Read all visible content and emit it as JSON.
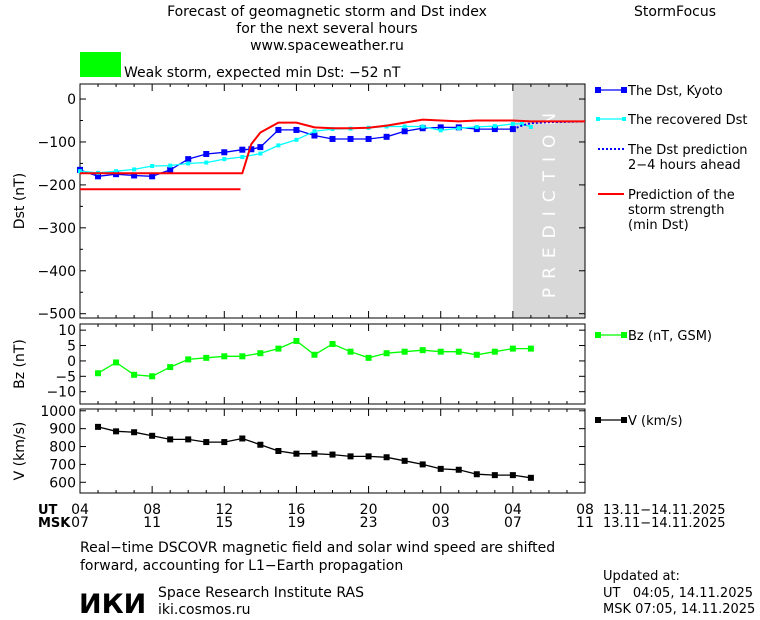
{
  "header": {
    "title_line1": "Forecast of geomagnetic storm and Dst index",
    "title_line2": "for the next several hours",
    "url": "www.spaceweather.ru",
    "brand": "StormFocus",
    "storm_label": "Weak storm, expected min Dst: −52 nT",
    "storm_color": "#00ff00"
  },
  "time_axis": {
    "ut_label": "UT",
    "msk_label": "MSK",
    "ut_ticks": [
      "04",
      "08",
      "12",
      "16",
      "20",
      "00",
      "04",
      "08"
    ],
    "msk_ticks": [
      "07",
      "11",
      "15",
      "19",
      "23",
      "03",
      "07",
      "11"
    ],
    "ut_range": "13.11−14.11.2025",
    "msk_range": "13.11−14.11.2025",
    "x_range_hours": [
      4,
      32
    ]
  },
  "prediction_band": {
    "text": "PREDICTION",
    "x_range_hours": [
      28,
      32
    ],
    "color": "#d8d8d8"
  },
  "chart_data": [
    {
      "type": "line",
      "ylabel": "Dst (nT)",
      "ylim": [
        -510,
        35
      ],
      "yticks": [
        "0",
        "−100",
        "−200",
        "−300",
        "−400",
        "−500"
      ],
      "ytick_values": [
        0,
        -100,
        -200,
        -300,
        -400,
        -500
      ],
      "series": [
        {
          "name": "The Dst, Kyoto",
          "color": "#0000ff",
          "marker": "square",
          "x": [
            4,
            5,
            6,
            7,
            8,
            9,
            10,
            11,
            12,
            13,
            13.5,
            14,
            15,
            16,
            17,
            18,
            19,
            20,
            21,
            22,
            23,
            24,
            25,
            26,
            27,
            28
          ],
          "y": [
            -165,
            -180,
            -175,
            -178,
            -180,
            -165,
            -140,
            -128,
            -124,
            -118,
            -117,
            -112,
            -72,
            -72,
            -85,
            -93,
            -93,
            -93,
            -88,
            -75,
            -68,
            -66,
            -66,
            -70,
            -70,
            -70
          ]
        },
        {
          "name": "The recovered Dst",
          "color": "#00ffff",
          "marker": "square-small",
          "x": [
            4,
            5,
            6,
            7,
            8,
            9,
            10,
            11,
            12,
            13,
            14,
            15,
            16,
            17,
            18,
            19,
            20,
            21,
            22,
            23,
            24,
            25,
            26,
            27,
            28,
            28.5,
            29
          ],
          "y": [
            -168,
            -172,
            -168,
            -164,
            -156,
            -155,
            -150,
            -148,
            -140,
            -135,
            -127,
            -108,
            -95,
            -75,
            -70,
            -69,
            -67,
            -64,
            -64,
            -64,
            -73,
            -68,
            -65,
            -63,
            -58,
            -58,
            -65
          ]
        },
        {
          "name": "The Dst prediction 2−4 hours ahead",
          "color": "#0000ff",
          "dashed": true,
          "x": [
            28,
            28.5,
            29,
            30,
            31,
            32
          ],
          "y": [
            -70,
            -62,
            -56,
            -54,
            -53,
            -52
          ]
        },
        {
          "name": "Prediction of the storm strength (min Dst)",
          "color": "#ff0000",
          "x": [
            4,
            5,
            6,
            7,
            8,
            9,
            10,
            11,
            12,
            13,
            13.5,
            14,
            15,
            16,
            17,
            18,
            19,
            20,
            21,
            22,
            23,
            24,
            25,
            26,
            27,
            28,
            29,
            30,
            31,
            32
          ],
          "y": [
            -173,
            -173,
            -173,
            -173,
            -173,
            -173,
            -173,
            -173,
            -173,
            -173,
            -105,
            -78,
            -55,
            -55,
            -66,
            -68,
            -68,
            -67,
            -62,
            -55,
            -48,
            -50,
            -52,
            -50,
            -50,
            -50,
            -52,
            -52,
            -52,
            -52
          ]
        },
        {
          "name": "",
          "color": "#ff0000",
          "x": [
            4,
            12.9
          ],
          "y": [
            -210,
            -210
          ]
        }
      ],
      "legend": [
        {
          "text": "The Dst, Kyoto",
          "style": "blue-square"
        },
        {
          "text": "The recovered Dst",
          "style": "cyan-square"
        },
        {
          "text": "The Dst prediction",
          "text2": "2−4 hours ahead",
          "style": "blue-dotted"
        },
        {
          "text": "Prediction of the",
          "text2": "storm strength",
          "text3": "(min Dst)",
          "style": "red-line"
        }
      ]
    },
    {
      "type": "line",
      "ylabel": "Bz (nT)",
      "ylim": [
        -14,
        12
      ],
      "yticks": [
        "10",
        "5",
        "0",
        "−5",
        "−10"
      ],
      "ytick_values": [
        10,
        5,
        0,
        -5,
        -10
      ],
      "series": [
        {
          "name": "Bz (nT, GSM)",
          "color": "#00ff00",
          "x": [
            5,
            6,
            7,
            8,
            9,
            10,
            11,
            12,
            13,
            14,
            15,
            16,
            17,
            18,
            19,
            20,
            21,
            22,
            23,
            24,
            25,
            26,
            27,
            28,
            29
          ],
          "y": [
            -4,
            -0.5,
            -4.5,
            -5,
            -2,
            0.5,
            1,
            1.5,
            1.5,
            2.5,
            4,
            6.5,
            2,
            5.5,
            3,
            1,
            2.5,
            3,
            3.5,
            3,
            3,
            2,
            3,
            4,
            4
          ]
        }
      ],
      "legend": [
        {
          "text": "Bz (nT, GSM)",
          "style": "green-square"
        }
      ]
    },
    {
      "type": "line",
      "ylabel": "V (km/s)",
      "ylim": [
        540,
        1010
      ],
      "yticks": [
        "1000",
        "900",
        "800",
        "700",
        "600"
      ],
      "ytick_values": [
        1000,
        900,
        800,
        700,
        600
      ],
      "series": [
        {
          "name": "V (km/s)",
          "color": "#000000",
          "x": [
            5,
            6,
            7,
            8,
            9,
            10,
            11,
            12,
            13,
            14,
            15,
            16,
            17,
            18,
            19,
            20,
            21,
            22,
            23,
            24,
            25,
            26,
            27,
            28,
            29
          ],
          "y": [
            910,
            885,
            880,
            860,
            840,
            840,
            825,
            825,
            845,
            810,
            775,
            760,
            760,
            755,
            745,
            745,
            740,
            720,
            700,
            675,
            670,
            645,
            640,
            640,
            625
          ]
        }
      ],
      "legend": [
        {
          "text": "V (km/s)",
          "style": "black-square"
        }
      ]
    }
  ],
  "footer": {
    "note_line1": "Real−time DSCOVR magnetic field and solar wind speed are shifted",
    "note_line2": "forward, accounting for L1−Earth propagation",
    "logo_text": "ИКИ",
    "institute": "Space Research Institute RAS",
    "institute_url": "iki.cosmos.ru",
    "updated_label": "Updated at:",
    "updated_ut": "UT   04:05, 14.11.2025",
    "updated_msk": "MSK 07:05, 14.11.2025"
  }
}
